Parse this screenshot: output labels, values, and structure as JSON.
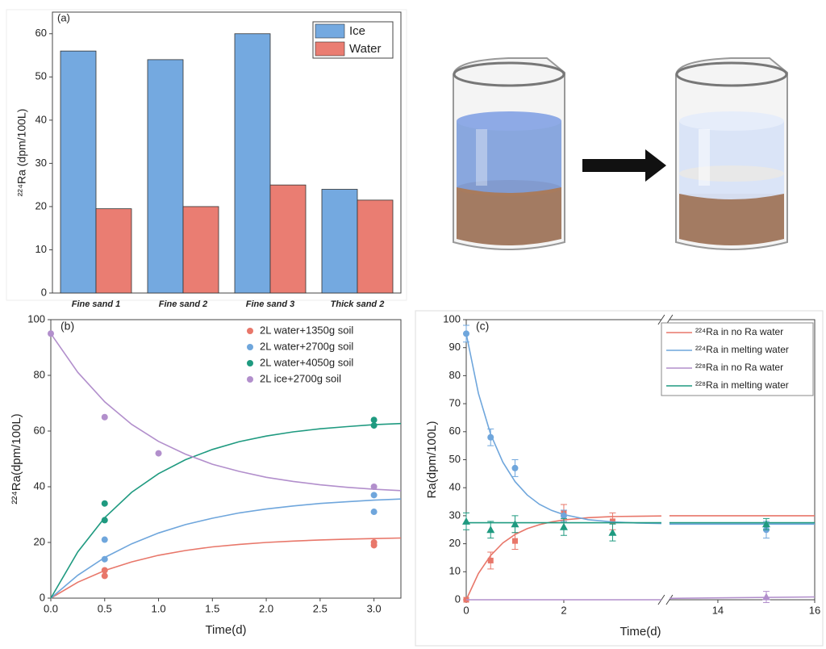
{
  "chart_data": [
    {
      "type": "bar",
      "label": "(a)",
      "ylabel": "²²⁴Ra (dpm/100L)",
      "categories": [
        "Fine sand 1",
        "Fine sand 2",
        "Fine sand 3",
        "Thick sand 2"
      ],
      "series": [
        {
          "name": "Ice",
          "color": "#74a9e0",
          "values": [
            56,
            54,
            60,
            24
          ]
        },
        {
          "name": "Water",
          "color": "#ea7d72",
          "values": [
            19.5,
            20,
            25,
            21.5
          ]
        }
      ],
      "ylim": [
        0,
        65
      ],
      "yticks": [
        0,
        10,
        20,
        30,
        40,
        50,
        60
      ],
      "legend": "top-right"
    },
    {
      "type": "scatter",
      "label": "(b)",
      "xlabel": "Time(d)",
      "ylabel": "²²⁴Ra(dpm/100L)",
      "xlim": [
        0,
        3.25
      ],
      "ylim": [
        0,
        100
      ],
      "xticks": [
        {
          "value": 0,
          "label": "0.0"
        },
        {
          "value": 0.5,
          "label": "0.5"
        },
        {
          "value": 1,
          "label": "1.0"
        },
        {
          "value": 1.5,
          "label": "1.5"
        },
        {
          "value": 2,
          "label": "2.0"
        },
        {
          "value": 2.5,
          "label": "2.5"
        },
        {
          "value": 3,
          "label": "3.0"
        }
      ],
      "yticks": [
        0,
        20,
        40,
        60,
        80,
        100
      ],
      "legend": "top-right",
      "series": [
        {
          "name": "2L water+1350g soil",
          "color": "#e8776a",
          "x": [
            0.5,
            0.5,
            3,
            3
          ],
          "values": [
            10,
            8,
            20,
            19
          ],
          "fit": {
            "x": [
              0,
              0.25,
              0.5,
              0.75,
              1,
              1.25,
              1.5,
              1.75,
              2,
              2.25,
              2.5,
              2.75,
              3,
              3.25
            ],
            "values": [
              0,
              5.7,
              9.9,
              13,
              15.4,
              17.1,
              18.4,
              19.3,
              20,
              20.5,
              20.9,
              21.2,
              21.4,
              21.6
            ]
          }
        },
        {
          "name": "2L water+2700g soil",
          "color": "#6fa6dc",
          "x": [
            0.5,
            0.5,
            3,
            3
          ],
          "values": [
            21,
            14,
            37,
            31
          ],
          "fit": {
            "x": [
              0,
              0.25,
              0.5,
              0.75,
              1,
              1.25,
              1.5,
              1.75,
              2,
              2.25,
              2.5,
              2.75,
              3,
              3.25
            ],
            "values": [
              0,
              8.2,
              14.6,
              19.5,
              23.4,
              26.4,
              28.7,
              30.6,
              32,
              33.1,
              34,
              34.6,
              35.2,
              35.6
            ]
          }
        },
        {
          "name": "2L water+4050g soil",
          "color": "#1f9a80",
          "x": [
            0.5,
            0.5,
            3,
            3
          ],
          "values": [
            34,
            28,
            64,
            62
          ],
          "fit": {
            "x": [
              0,
              0.25,
              0.5,
              0.75,
              1,
              1.25,
              1.5,
              1.75,
              2,
              2.25,
              2.5,
              2.75,
              3,
              3.25
            ],
            "values": [
              0,
              16.6,
              28.9,
              38,
              44.7,
              49.7,
              53.4,
              56.2,
              58.2,
              59.7,
              60.8,
              61.6,
              62.3,
              62.7
            ]
          }
        },
        {
          "name": "2L ice+2700g soil",
          "color": "#b28fcc",
          "x": [
            0,
            0.5,
            1,
            3
          ],
          "values": [
            95,
            65,
            52,
            40
          ],
          "fit": {
            "x": [
              0,
              0.25,
              0.5,
              0.75,
              1,
              1.25,
              1.5,
              1.75,
              2,
              2.25,
              2.5,
              2.75,
              3,
              3.25
            ],
            "values": [
              95,
              81.1,
              70.5,
              62.4,
              56.3,
              51.7,
              48.1,
              45.5,
              43.4,
              41.9,
              40.7,
              39.8,
              39.1,
              38.6
            ]
          }
        }
      ]
    },
    {
      "type": "scatter",
      "label": "(c)",
      "xlabel": "Time(d)",
      "ylabel": "Ra(dpm/100L)",
      "xlim": [
        0,
        16
      ],
      "xbreak": [
        4,
        13
      ],
      "ylim": [
        0,
        100
      ],
      "xticks": [
        0,
        2,
        14,
        16
      ],
      "yticks": [
        0,
        10,
        20,
        30,
        40,
        50,
        60,
        70,
        80,
        90,
        100
      ],
      "legend": "top-right",
      "series": [
        {
          "name": "²²⁴Ra in no Ra water",
          "color": "#e8776a",
          "marker": "square",
          "x": [
            0,
            0.5,
            1,
            2,
            3
          ],
          "values": [
            0,
            14,
            21,
            31,
            28
          ],
          "errors": [
            0,
            3,
            3,
            3,
            3
          ],
          "fit": {
            "x": [
              0,
              0.25,
              0.5,
              0.75,
              1,
              1.25,
              1.5,
              1.75,
              2,
              2.5,
              3,
              3.5,
              4,
              13,
              16
            ],
            "values": [
              0,
              9.4,
              15.8,
              20.3,
              23.3,
              25.4,
              26.8,
              27.8,
              28.5,
              29.3,
              29.7,
              29.8,
              29.9,
              30,
              30
            ]
          }
        },
        {
          "name": "²²⁴Ra in melting water",
          "color": "#6fa6dc",
          "marker": "circle",
          "x": [
            0,
            0.5,
            1,
            2,
            15
          ],
          "values": [
            95,
            58,
            47,
            30,
            25
          ],
          "errors": [
            3,
            3,
            3,
            2,
            3
          ],
          "fit": {
            "x": [
              0,
              0.25,
              0.5,
              0.75,
              1,
              1.25,
              1.5,
              1.75,
              2,
              2.5,
              3,
              3.5,
              4,
              13,
              16
            ],
            "values": [
              95,
              73.7,
              59.1,
              49.1,
              42.2,
              37.4,
              34.1,
              31.9,
              30.4,
              28.6,
              27.8,
              27.4,
              27.2,
              27,
              27
            ]
          }
        },
        {
          "name": "²²⁸Ra in no Ra water",
          "color": "#b28fcc",
          "marker": "triangle",
          "x": [
            15
          ],
          "values": [
            1
          ],
          "errors": [
            2
          ],
          "fit": {
            "x": [
              0,
              4,
              13,
              16
            ],
            "values": [
              0,
              0,
              0.5,
              1
            ]
          }
        },
        {
          "name": "²²⁸Ra in melting water",
          "color": "#1f9a80",
          "marker": "triangle",
          "x": [
            0,
            0.5,
            1,
            2,
            3,
            15
          ],
          "values": [
            28,
            25,
            27,
            26,
            24,
            27
          ],
          "errors": [
            3,
            3,
            3,
            3,
            3,
            2
          ],
          "fit": {
            "x": [
              0,
              4,
              13,
              16
            ],
            "values": [
              27.5,
              27.5,
              27.5,
              27.5
            ]
          }
        }
      ]
    }
  ]
}
